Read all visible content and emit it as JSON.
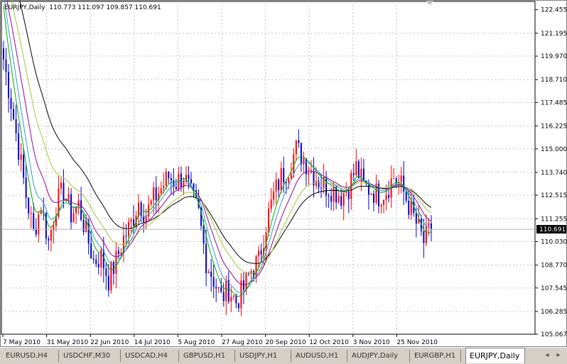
{
  "header": {
    "symbol": "EURJPY,Daily",
    "ohlc": "110.773 111.097 109.857 110.691"
  },
  "icons": {
    "collapse": "triangle-down-icon",
    "scroll_left": "arrow-left-icon",
    "scroll_right": "arrow-right-icon"
  },
  "colors": {
    "bull": "#ff0000",
    "bear": "#0000cc",
    "grid": "#c0c0c0",
    "ma": [
      "#000000",
      "#99cc33",
      "#990099",
      "#3399cc",
      "#00aa00"
    ]
  },
  "tabs": [
    {
      "label": "EURUSD,H4",
      "active": false
    },
    {
      "label": "USDCHF,M30",
      "active": false
    },
    {
      "label": "USDCAD,H4",
      "active": false
    },
    {
      "label": "GBPUSD,H1",
      "active": false
    },
    {
      "label": "USDJPY,H1",
      "active": false
    },
    {
      "label": "AUDUSD,H1",
      "active": false
    },
    {
      "label": "AUDJPY,Daily",
      "active": false
    },
    {
      "label": "EURGBP,H1",
      "active": false
    },
    {
      "label": "EURJPY,Daily",
      "active": true
    }
  ],
  "chart_data": {
    "type": "candlestick",
    "grid": true,
    "ylim": [
      105.067,
      122.9
    ],
    "y_ticks": [
      "122.455",
      "121.195",
      "119.970",
      "118.710",
      "117.485",
      "116.225",
      "115.000",
      "113.740",
      "112.515",
      "111.255",
      "110.030",
      "108.770",
      "107.545",
      "106.285",
      "105.067"
    ],
    "x_ticks": [
      "7 May 2010",
      "31 May 2010",
      "22 Jun 2010",
      "14 Jul 2010",
      "5 Aug 2010",
      "27 Aug 2010",
      "20 Sep 2010",
      "12 Oct 2010",
      "3 Nov 2010",
      "25 Nov 2010"
    ],
    "current_price": "110.691",
    "close_path": [
      [
        0,
        119.8
      ],
      [
        3,
        117.5
      ],
      [
        6,
        115.0
      ],
      [
        9,
        112.5
      ],
      [
        12,
        110.5
      ],
      [
        15,
        112.0
      ],
      [
        18,
        110.0
      ],
      [
        21,
        112.0
      ],
      [
        24,
        112.8
      ],
      [
        27,
        111.5
      ],
      [
        30,
        112.0
      ],
      [
        33,
        110.5
      ],
      [
        36,
        109.0
      ],
      [
        39,
        109.2
      ],
      [
        42,
        108.0
      ],
      [
        45,
        109.0
      ],
      [
        48,
        110.2
      ],
      [
        51,
        111.0
      ],
      [
        54,
        112.2
      ],
      [
        57,
        111.5
      ],
      [
        60,
        112.3
      ],
      [
        63,
        112.9
      ],
      [
        66,
        113.5
      ],
      [
        69,
        113.2
      ],
      [
        72,
        113.6
      ],
      [
        75,
        112.5
      ],
      [
        78,
        111.5
      ],
      [
        81,
        109.0
      ],
      [
        84,
        108.0
      ],
      [
        87,
        107.0
      ],
      [
        90,
        107.5
      ],
      [
        93,
        106.8
      ],
      [
        96,
        107.5
      ],
      [
        99,
        108.5
      ],
      [
        102,
        109.0
      ],
      [
        105,
        111.0
      ],
      [
        108,
        112.5
      ],
      [
        111,
        113.5
      ],
      [
        114,
        114.0
      ],
      [
        117,
        115.0
      ],
      [
        120,
        114.5
      ],
      [
        123,
        113.8
      ],
      [
        126,
        113.3
      ],
      [
        129,
        113.0
      ],
      [
        132,
        112.8
      ],
      [
        135,
        112.5
      ],
      [
        138,
        113.0
      ],
      [
        141,
        114.0
      ],
      [
        144,
        113.0
      ],
      [
        147,
        112.8
      ],
      [
        150,
        112.5
      ],
      [
        153,
        112.8
      ],
      [
        156,
        113.5
      ],
      [
        159,
        113.0
      ],
      [
        162,
        112.0
      ],
      [
        165,
        111.0
      ],
      [
        168,
        110.0
      ],
      [
        171,
        110.691
      ]
    ],
    "series": [
      {
        "name": "",
        "period": 50
      },
      {
        "name": "",
        "period": 21
      },
      {
        "name": "",
        "period": 13
      },
      {
        "name": "",
        "period": 8
      },
      {
        "name": "",
        "period": 5
      }
    ]
  }
}
